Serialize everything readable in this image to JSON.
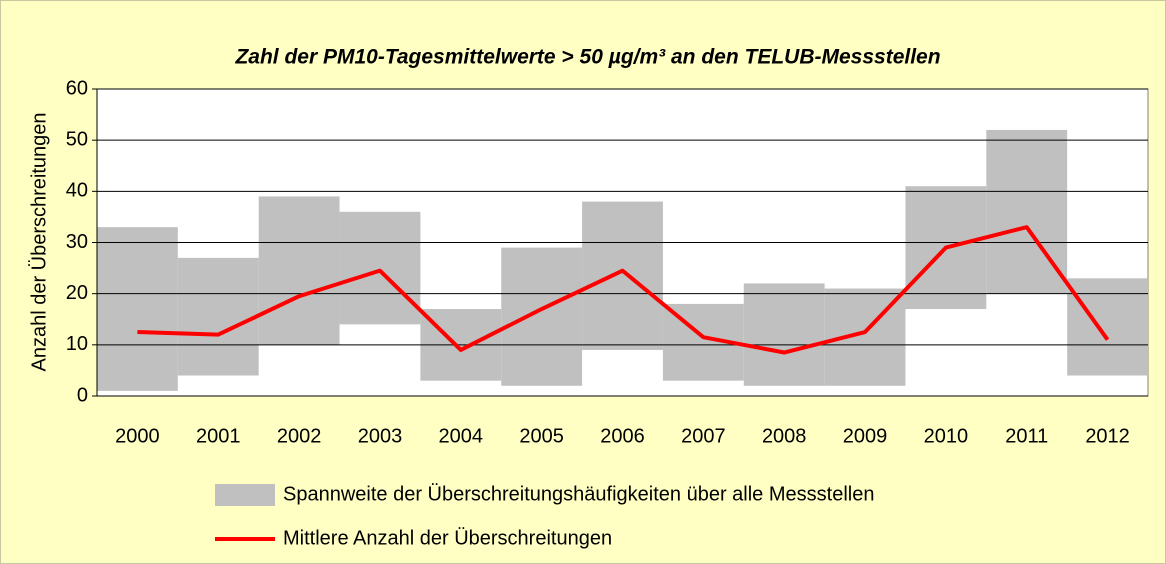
{
  "chart_data": {
    "type": "bar",
    "title": "Zahl der PM10-Tagesmittelwerte > 50 µg/m³ an den TELUB-Messstellen",
    "y_label": "Anzahl der Überschreitungen",
    "categories": [
      "2000",
      "2001",
      "2002",
      "2003",
      "2004",
      "2005",
      "2006",
      "2007",
      "2008",
      "2009",
      "2010",
      "2011",
      "2012"
    ],
    "series": [
      {
        "name": "Spannweite der Überschreitungshäufigkeiten über alle Messstellen",
        "type": "range",
        "color": "#c0c0c0",
        "low": [
          1,
          4,
          10,
          14,
          3,
          2,
          9,
          3,
          2,
          2,
          17,
          20,
          4
        ],
        "high": [
          33,
          27,
          39,
          36,
          17,
          29,
          38,
          18,
          22,
          21,
          41,
          52,
          23
        ]
      },
      {
        "name": "Mittlere Anzahl der Überschreitungen",
        "type": "line",
        "color": "#ff0000",
        "values": [
          12.5,
          12,
          19.5,
          24.5,
          9,
          17,
          24.5,
          11.5,
          8.5,
          12.5,
          29,
          33,
          11
        ]
      }
    ],
    "ylim": [
      0,
      60
    ],
    "yticks": [
      0,
      10,
      20,
      30,
      40,
      50,
      60
    ],
    "grid": true
  }
}
